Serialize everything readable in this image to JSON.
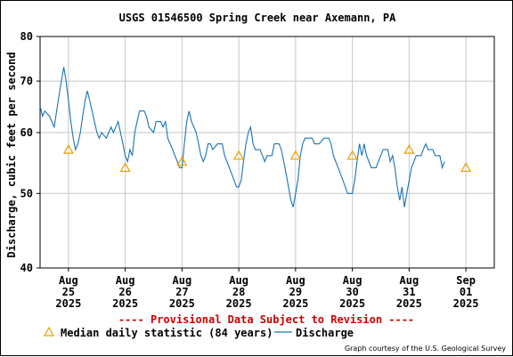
{
  "chart_data": {
    "type": "line",
    "title": "USGS 01546500 Spring Creek near Axemann, PA",
    "ylabel": "Discharge, cubic feet per second",
    "yscale": "log",
    "ylim": [
      40,
      80
    ],
    "yticks": [
      40,
      50,
      60,
      70,
      80
    ],
    "grid": true,
    "xlim": [
      "2025-08-24T12:00",
      "2025-09-01T12:00"
    ],
    "xticks": [
      {
        "date": "2025-08-25T00:00",
        "label": [
          "Aug",
          "25",
          "2025"
        ]
      },
      {
        "date": "2025-08-26T00:00",
        "label": [
          "Aug",
          "26",
          "2025"
        ]
      },
      {
        "date": "2025-08-27T00:00",
        "label": [
          "Aug",
          "27",
          "2025"
        ]
      },
      {
        "date": "2025-08-28T00:00",
        "label": [
          "Aug",
          "28",
          "2025"
        ]
      },
      {
        "date": "2025-08-29T00:00",
        "label": [
          "Aug",
          "29",
          "2025"
        ]
      },
      {
        "date": "2025-08-30T00:00",
        "label": [
          "Aug",
          "30",
          "2025"
        ]
      },
      {
        "date": "2025-08-31T00:00",
        "label": [
          "Aug",
          "31",
          "2025"
        ]
      },
      {
        "date": "2025-09-01T00:00",
        "label": [
          "Sep",
          "01",
          "2025"
        ]
      }
    ],
    "series": [
      {
        "name": "Discharge",
        "color": "#1a73b5",
        "points": [
          [
            "2025-08-24T12:00",
            65
          ],
          [
            "2025-08-24T13:00",
            63
          ],
          [
            "2025-08-24T14:00",
            64
          ],
          [
            "2025-08-24T16:00",
            63
          ],
          [
            "2025-08-24T18:00",
            61
          ],
          [
            "2025-08-24T19:00",
            64
          ],
          [
            "2025-08-24T20:00",
            67
          ],
          [
            "2025-08-24T21:00",
            70
          ],
          [
            "2025-08-24T22:00",
            73
          ],
          [
            "2025-08-24T23:00",
            70
          ],
          [
            "2025-08-25T00:00",
            66
          ],
          [
            "2025-08-25T01:00",
            62
          ],
          [
            "2025-08-25T02:00",
            59
          ],
          [
            "2025-08-25T03:00",
            57
          ],
          [
            "2025-08-25T04:00",
            58
          ],
          [
            "2025-08-25T05:00",
            60
          ],
          [
            "2025-08-25T06:00",
            63
          ],
          [
            "2025-08-25T07:00",
            66
          ],
          [
            "2025-08-25T08:00",
            68
          ],
          [
            "2025-08-25T09:00",
            66
          ],
          [
            "2025-08-25T10:00",
            64
          ],
          [
            "2025-08-25T11:00",
            62
          ],
          [
            "2025-08-25T12:00",
            60
          ],
          [
            "2025-08-25T13:00",
            59
          ],
          [
            "2025-08-25T14:00",
            60
          ],
          [
            "2025-08-25T16:00",
            59
          ],
          [
            "2025-08-25T18:00",
            61
          ],
          [
            "2025-08-25T19:00",
            60
          ],
          [
            "2025-08-25T20:00",
            61
          ],
          [
            "2025-08-25T21:00",
            62
          ],
          [
            "2025-08-25T22:00",
            60
          ],
          [
            "2025-08-25T23:00",
            58
          ],
          [
            "2025-08-26T00:00",
            56
          ],
          [
            "2025-08-26T01:00",
            55
          ],
          [
            "2025-08-26T02:00",
            57
          ],
          [
            "2025-08-26T03:00",
            56
          ],
          [
            "2025-08-26T04:00",
            60
          ],
          [
            "2025-08-26T05:00",
            62
          ],
          [
            "2025-08-26T06:00",
            64
          ],
          [
            "2025-08-26T08:00",
            64
          ],
          [
            "2025-08-26T09:00",
            63
          ],
          [
            "2025-08-26T10:00",
            61
          ],
          [
            "2025-08-26T12:00",
            60
          ],
          [
            "2025-08-26T13:00",
            62
          ],
          [
            "2025-08-26T15:00",
            62
          ],
          [
            "2025-08-26T16:00",
            61
          ],
          [
            "2025-08-26T17:00",
            62
          ],
          [
            "2025-08-26T18:00",
            59
          ],
          [
            "2025-08-26T19:00",
            58
          ],
          [
            "2025-08-26T20:00",
            57
          ],
          [
            "2025-08-26T21:00",
            56
          ],
          [
            "2025-08-26T22:00",
            55
          ],
          [
            "2025-08-26T23:00",
            54
          ],
          [
            "2025-08-27T00:00",
            54
          ],
          [
            "2025-08-27T01:00",
            58
          ],
          [
            "2025-08-27T02:00",
            62
          ],
          [
            "2025-08-27T03:00",
            64
          ],
          [
            "2025-08-27T04:00",
            62
          ],
          [
            "2025-08-27T05:00",
            61
          ],
          [
            "2025-08-27T06:00",
            60
          ],
          [
            "2025-08-27T07:00",
            58
          ],
          [
            "2025-08-27T08:00",
            56
          ],
          [
            "2025-08-27T09:00",
            55
          ],
          [
            "2025-08-27T10:00",
            56
          ],
          [
            "2025-08-27T11:00",
            58
          ],
          [
            "2025-08-27T12:00",
            58
          ],
          [
            "2025-08-27T13:00",
            57
          ],
          [
            "2025-08-27T15:00",
            58
          ],
          [
            "2025-08-27T17:00",
            58
          ],
          [
            "2025-08-27T18:00",
            56
          ],
          [
            "2025-08-27T19:00",
            55
          ],
          [
            "2025-08-27T20:00",
            54
          ],
          [
            "2025-08-27T21:00",
            53
          ],
          [
            "2025-08-27T22:00",
            52
          ],
          [
            "2025-08-27T23:00",
            51
          ],
          [
            "2025-08-28T00:00",
            51
          ],
          [
            "2025-08-28T01:00",
            52
          ],
          [
            "2025-08-28T02:00",
            55
          ],
          [
            "2025-08-28T03:00",
            58
          ],
          [
            "2025-08-28T04:00",
            60
          ],
          [
            "2025-08-28T05:00",
            61
          ],
          [
            "2025-08-28T06:00",
            58
          ],
          [
            "2025-08-28T07:00",
            57
          ],
          [
            "2025-08-28T09:00",
            57
          ],
          [
            "2025-08-28T10:00",
            56
          ],
          [
            "2025-08-28T11:00",
            55
          ],
          [
            "2025-08-28T12:00",
            56
          ],
          [
            "2025-08-28T14:00",
            56
          ],
          [
            "2025-08-28T15:00",
            58
          ],
          [
            "2025-08-28T17:00",
            58
          ],
          [
            "2025-08-28T18:00",
            57
          ],
          [
            "2025-08-28T19:00",
            55
          ],
          [
            "2025-08-28T20:00",
            53
          ],
          [
            "2025-08-28T21:00",
            51
          ],
          [
            "2025-08-28T22:00",
            49
          ],
          [
            "2025-08-28T23:00",
            48
          ],
          [
            "2025-08-29T00:00",
            50
          ],
          [
            "2025-08-29T01:00",
            52
          ],
          [
            "2025-08-29T02:00",
            56
          ],
          [
            "2025-08-29T03:00",
            58
          ],
          [
            "2025-08-29T04:00",
            59
          ],
          [
            "2025-08-29T05:00",
            59
          ],
          [
            "2025-08-29T07:00",
            59
          ],
          [
            "2025-08-29T08:00",
            58
          ],
          [
            "2025-08-29T10:00",
            58
          ],
          [
            "2025-08-29T12:00",
            59
          ],
          [
            "2025-08-29T14:00",
            59
          ],
          [
            "2025-08-29T15:00",
            58
          ],
          [
            "2025-08-29T16:00",
            56
          ],
          [
            "2025-08-29T17:00",
            55
          ],
          [
            "2025-08-29T18:00",
            54
          ],
          [
            "2025-08-29T19:00",
            53
          ],
          [
            "2025-08-29T20:00",
            52
          ],
          [
            "2025-08-29T21:00",
            51
          ],
          [
            "2025-08-29T22:00",
            50
          ],
          [
            "2025-08-29T23:00",
            50
          ],
          [
            "2025-08-30T00:00",
            50
          ],
          [
            "2025-08-30T01:00",
            52
          ],
          [
            "2025-08-30T02:00",
            55
          ],
          [
            "2025-08-30T03:00",
            58
          ],
          [
            "2025-08-30T04:00",
            56
          ],
          [
            "2025-08-30T05:00",
            58
          ],
          [
            "2025-08-30T06:00",
            56
          ],
          [
            "2025-08-30T07:00",
            55
          ],
          [
            "2025-08-30T08:00",
            54
          ],
          [
            "2025-08-30T10:00",
            54
          ],
          [
            "2025-08-30T11:00",
            55
          ],
          [
            "2025-08-30T12:00",
            56
          ],
          [
            "2025-08-30T13:00",
            57
          ],
          [
            "2025-08-30T15:00",
            57
          ],
          [
            "2025-08-30T16:00",
            55
          ],
          [
            "2025-08-30T17:00",
            56
          ],
          [
            "2025-08-30T18:00",
            54
          ],
          [
            "2025-08-30T19:00",
            51
          ],
          [
            "2025-08-30T20:00",
            49
          ],
          [
            "2025-08-30T21:00",
            51
          ],
          [
            "2025-08-30T22:00",
            48
          ],
          [
            "2025-08-30T23:00",
            50
          ],
          [
            "2025-08-31T00:00",
            52
          ],
          [
            "2025-08-31T01:00",
            54
          ],
          [
            "2025-08-31T02:00",
            55
          ],
          [
            "2025-08-31T03:00",
            56
          ],
          [
            "2025-08-31T05:00",
            56
          ],
          [
            "2025-08-31T06:00",
            57
          ],
          [
            "2025-08-31T07:00",
            58
          ],
          [
            "2025-08-31T08:00",
            57
          ],
          [
            "2025-08-31T10:00",
            57
          ],
          [
            "2025-08-31T11:00",
            56
          ],
          [
            "2025-08-31T13:00",
            56
          ],
          [
            "2025-08-31T14:00",
            54
          ],
          [
            "2025-08-31T15:00",
            55
          ]
        ]
      },
      {
        "name": "Median daily statistic (84 years)",
        "color": "#e8a000",
        "marker": "triangle",
        "points": [
          [
            "2025-08-25T00:00",
            57
          ],
          [
            "2025-08-26T00:00",
            54
          ],
          [
            "2025-08-27T00:00",
            55
          ],
          [
            "2025-08-28T00:00",
            56
          ],
          [
            "2025-08-29T00:00",
            56
          ],
          [
            "2025-08-30T00:00",
            56
          ],
          [
            "2025-08-31T00:00",
            57
          ],
          [
            "2025-09-01T00:00",
            54
          ]
        ]
      }
    ],
    "annotation": "---- Provisional Data Subject to Revision ----",
    "credit": "Graph courtesy of the U.S. Geological Survey",
    "legend_position": "bottom"
  }
}
